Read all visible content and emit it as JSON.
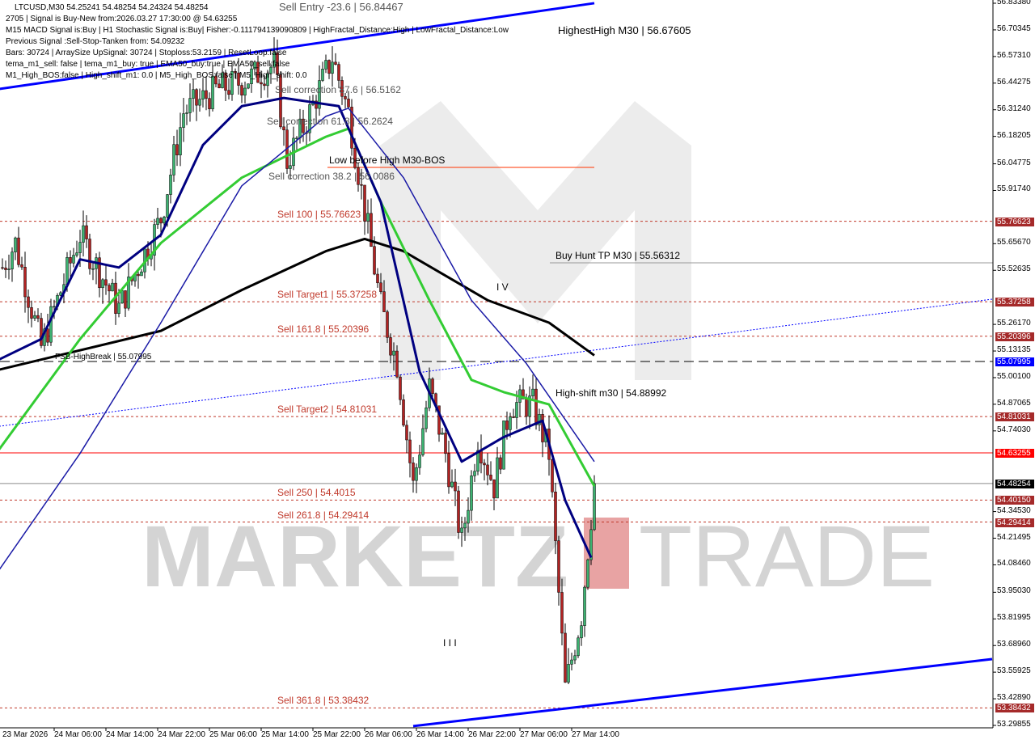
{
  "header": {
    "symbol_line": "LTCUSD,M30  54.25241 54.48254 54.24324 54.48254",
    "lines": [
      "2705 | Signal is Buy-New from:2026.03.27 17:30:00 @ 54.63255",
      "M15 MACD Signal is:Buy | H1 Stochastic Signal is:Buy| Fisher:-0.111794139090809 | HighFractal_Distance:High | LowFractal_Distance:Low",
      "Previous Signal :Sell-Stop-Tanken from: 54.09232",
      "Bars: 30724 | ArraySize UpSignal: 30724 | Stoploss:53.2159 | ResetLoop:false",
      "tema_m1_sell: false | tema_m1_buy: true | EMA50_buy:true | EMA50_sell:false",
      "M1_High_BOS:false | High_shift_m1: 0.0 | M5_High_BOS:false | M5_High_shift: 0.0"
    ]
  },
  "watermark": {
    "left": "MARKETZ",
    "i": "I",
    "right": "TRADE"
  },
  "annotations": {
    "sell_entry": "Sell Entry -23.6 | 56.84467",
    "highest_high": "HighestHigh   M30 | 56.67605",
    "sell_correction_876": "Sell correction 87.6 | 56.5162",
    "sell_correction_618": "Sell correction 61.8 | 56.2624",
    "sell_correction_382": "Sell correction 38.2 | 56.0086",
    "low_before_high": "Low before High   M30-BOS",
    "wave_iv": "I V",
    "wave_iii": "I I I"
  },
  "levels": [
    {
      "label": "Sell 100 | 55.76623",
      "price": 55.76623,
      "color": "#c0392b",
      "style": "dashed"
    },
    {
      "label": "Buy Hunt TP M30 | 55.56312",
      "price": 55.56312,
      "color": "#000000",
      "style": "solid-gray"
    },
    {
      "label": "Sell Target1 | 55.37258",
      "price": 55.37258,
      "color": "#c0392b",
      "style": "dashed"
    },
    {
      "label": "Sell 161.8 | 55.20396",
      "price": 55.20396,
      "color": "#c0392b",
      "style": "dashed"
    },
    {
      "label": "FSB-HighBreak | 55.07995",
      "price": 55.07995,
      "color": "#000000",
      "style": "longdash"
    },
    {
      "label": "High-shift m30 | 54.88992",
      "price": 54.88992,
      "color": "#000000",
      "style": "none"
    },
    {
      "label": "Sell Target2 | 54.81031",
      "price": 54.81031,
      "color": "#c0392b",
      "style": "dashed"
    },
    {
      "label": "",
      "price": 54.63255,
      "color": "#ff0000",
      "style": "solid"
    },
    {
      "label": "",
      "price": 54.48254,
      "color": "#8a8a8a",
      "style": "solid"
    },
    {
      "label": "Sell 250 | 54.4015",
      "price": 54.4015,
      "color": "#c0392b",
      "style": "dashed"
    },
    {
      "label": "Sell 261.8 | 54.29414",
      "price": 54.29414,
      "color": "#c0392b",
      "style": "dashed"
    },
    {
      "label": "Sell 361.8 | 53.38432",
      "price": 53.38432,
      "color": "#c0392b",
      "style": "dashed"
    }
  ],
  "chart_data": {
    "type": "candlestick",
    "symbol": "LTCUSD",
    "timeframe": "M30",
    "ylim": [
      53.29855,
      56.8338
    ],
    "y_ticks": [
      "56.83380",
      "56.70345",
      "56.57310",
      "56.44275",
      "56.31240",
      "56.18205",
      "56.04775",
      "55.91740",
      "55.65670",
      "55.52635",
      "55.26170",
      "55.13135",
      "55.00100",
      "54.87065",
      "54.74030",
      "54.34530",
      "54.21495",
      "54.08460",
      "53.95030",
      "53.81995",
      "53.68960",
      "53.55925",
      "53.42890",
      "53.29855"
    ],
    "price_tags": [
      {
        "text": "55.76623",
        "color": "#a52a2a"
      },
      {
        "text": "55.37258",
        "color": "#a52a2a"
      },
      {
        "text": "55.20396",
        "color": "#a52a2a"
      },
      {
        "text": "55.07995",
        "color": "#0000ff"
      },
      {
        "text": "54.81031",
        "color": "#a52a2a"
      },
      {
        "text": "54.63255",
        "color": "#ff0000"
      },
      {
        "text": "54.48254",
        "color": "#000000"
      },
      {
        "text": "54.40150",
        "color": "#a52a2a"
      },
      {
        "text": "54.29414",
        "color": "#a52a2a"
      },
      {
        "text": "53.38432",
        "color": "#a52a2a"
      }
    ],
    "x_ticks": [
      "23 Mar 2026",
      "24 Mar 06:00",
      "24 Mar 14:00",
      "24 Mar 22:00",
      "25 Mar 06:00",
      "25 Mar 14:00",
      "25 Mar 22:00",
      "26 Mar 06:00",
      "26 Mar 14:00",
      "26 Mar 22:00",
      "27 Mar 06:00",
      "27 Mar 14:00"
    ],
    "price_path": [
      [
        "2026-03-23T22:00",
        55.54
      ],
      [
        "2026-03-24T00:00",
        55.66
      ],
      [
        "2026-03-24T04:00",
        55.15
      ],
      [
        "2026-03-24T10:00",
        55.7
      ],
      [
        "2026-03-24T16:00",
        55.34
      ],
      [
        "2026-03-24T22:30",
        55.78
      ],
      [
        "2026-03-25T02:00",
        56.3
      ],
      [
        "2026-03-25T07:00",
        56.41
      ],
      [
        "2026-03-25T11:00",
        56.45
      ],
      [
        "2026-03-25T16:00",
        56.53
      ],
      [
        "2026-03-25T18:00",
        56.06
      ],
      [
        "2026-03-25T21:00",
        56.26
      ],
      [
        "2026-03-26T01:00",
        56.57
      ],
      [
        "2026-03-26T03:30",
        56.3
      ],
      [
        "2026-03-26T06:00",
        55.82
      ],
      [
        "2026-03-26T08:30",
        55.35
      ],
      [
        "2026-03-26T11:00",
        55.07
      ],
      [
        "2026-03-26T13:30",
        54.47
      ],
      [
        "2026-03-26T16:00",
        54.95
      ],
      [
        "2026-03-26T18:30",
        54.63
      ],
      [
        "2026-03-26T21:00",
        54.2
      ],
      [
        "2026-03-26T23:30",
        54.71
      ],
      [
        "2026-03-27T02:00",
        54.47
      ],
      [
        "2026-03-27T04:30",
        54.87
      ],
      [
        "2026-03-27T08:00",
        54.87
      ],
      [
        "2026-03-27T10:30",
        54.63
      ],
      [
        "2026-03-27T13:00",
        53.48
      ],
      [
        "2026-03-27T15:30",
        53.84
      ],
      [
        "2026-03-27T17:30",
        54.48254
      ]
    ],
    "series": [
      {
        "color": "#000000",
        "points": [
          [
            "2026-03-23T21:30",
            55.04
          ],
          [
            "2026-03-24T22:30",
            55.23
          ],
          [
            "2026-03-25T11:00",
            55.43
          ],
          [
            "2026-03-26T00:00",
            55.62
          ],
          [
            "2026-03-26T06:00",
            55.68
          ],
          [
            "2026-03-26T12:00",
            55.62
          ],
          [
            "2026-03-27T01:00",
            55.38
          ],
          [
            "2026-03-27T10:30",
            55.27
          ],
          [
            "2026-03-27T17:30",
            55.11
          ]
        ]
      },
      {
        "color": "#33cc33",
        "points": [
          [
            "2026-03-23T21:30",
            54.65
          ],
          [
            "2026-03-24T10:00",
            55.19
          ],
          [
            "2026-03-24T22:30",
            55.66
          ],
          [
            "2026-03-25T11:00",
            55.98
          ],
          [
            "2026-03-26T00:00",
            56.18
          ],
          [
            "2026-03-26T03:30",
            56.22
          ],
          [
            "2026-03-26T08:30",
            55.86
          ],
          [
            "2026-03-26T16:00",
            55.38
          ],
          [
            "2026-03-26T22:30",
            54.99
          ],
          [
            "2026-03-27T03:30",
            54.93
          ],
          [
            "2026-03-27T10:30",
            54.87
          ],
          [
            "2026-03-27T17:30",
            54.47
          ]
        ]
      },
      {
        "color": "#000080",
        "points": [
          [
            "2026-03-23T21:30",
            55.09
          ],
          [
            "2026-03-24T04:00",
            55.19
          ],
          [
            "2026-03-24T10:00",
            55.58
          ],
          [
            "2026-03-24T16:00",
            55.54
          ],
          [
            "2026-03-24T22:30",
            55.7
          ],
          [
            "2026-03-25T05:00",
            56.14
          ],
          [
            "2026-03-25T11:00",
            56.33
          ],
          [
            "2026-03-25T17:30",
            56.37
          ],
          [
            "2026-03-26T02:00",
            56.33
          ],
          [
            "2026-03-26T08:30",
            55.86
          ],
          [
            "2026-03-26T14:30",
            55.03
          ],
          [
            "2026-03-26T21:00",
            54.59
          ],
          [
            "2026-03-27T03:30",
            54.71
          ],
          [
            "2026-03-27T09:30",
            54.79
          ],
          [
            "2026-03-27T13:00",
            54.4
          ],
          [
            "2026-03-27T17:00",
            54.12
          ]
        ]
      },
      {
        "color": "#1a1aa6",
        "points": [
          [
            "2026-03-23T21:30",
            54.06
          ],
          [
            "2026-03-24T10:00",
            54.63
          ],
          [
            "2026-03-24T22:30",
            55.27
          ],
          [
            "2026-03-25T11:00",
            55.94
          ],
          [
            "2026-03-26T00:00",
            56.28
          ],
          [
            "2026-03-26T03:30",
            56.32
          ],
          [
            "2026-03-26T12:00",
            55.98
          ],
          [
            "2026-03-26T22:30",
            55.38
          ],
          [
            "2026-03-27T07:00",
            55.07
          ],
          [
            "2026-03-27T17:30",
            54.59
          ]
        ]
      }
    ],
    "trendlines": [
      {
        "color": "#0000ff",
        "style": "solid",
        "from": [
          "2026-03-23T21:30",
          56.414
        ],
        "to": [
          "2026-03-27T17:30",
          56.834
        ]
      },
      {
        "color": "#0000ff",
        "style": "solid",
        "from": [
          "2026-03-26T13:30",
          53.295
        ],
        "to": [
          "2026-03-30T07:00",
          53.623
        ]
      },
      {
        "color": "#0000ff",
        "style": "dotted",
        "from": [
          "2026-03-23T21:30",
          54.763
        ],
        "to": [
          "2026-03-30T07:00",
          55.385
        ]
      }
    ],
    "colors": {
      "bull": "#3cb371",
      "bear": "#b22222",
      "background": "#ffffff",
      "axis_panel": "#ffffff"
    }
  }
}
